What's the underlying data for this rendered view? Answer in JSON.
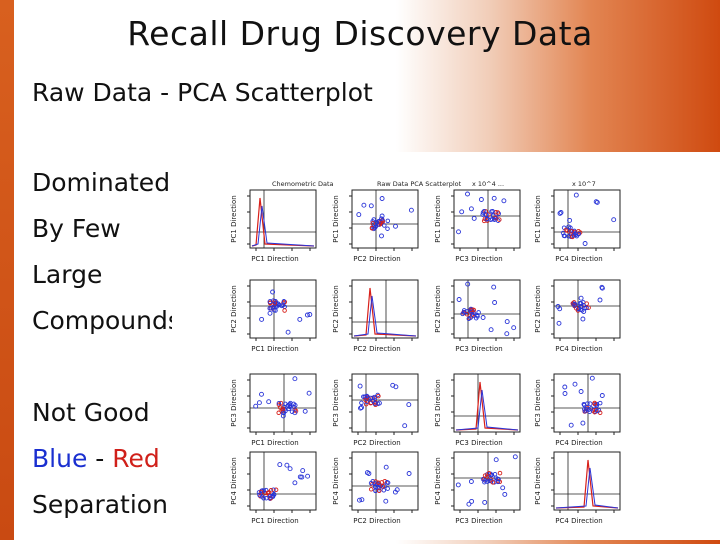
{
  "slide": {
    "title": "Recall Drug Discovery Data",
    "subtitle": "Raw Data - PCA Scatterplot",
    "left_text": {
      "line1": "Dominated",
      "line2": "By Few",
      "line3": "Large",
      "line4": "Compounds",
      "line5": "Not Good",
      "blue_word": "Blue",
      "dash": " - ",
      "red_word": "Red",
      "line7": "Separation"
    }
  },
  "figure": {
    "panel_titles": {
      "p00": "Chemometric Data",
      "p01": "Raw Data PCA Scatterplot",
      "p02": "x 10^4 ...",
      "p03": "x 10^7"
    },
    "x_axis_labels": [
      "PC1 Direction",
      "PC2 Direction",
      "PC3 Direction",
      "PC4 Direction"
    ],
    "y_axis_labels": [
      "PC1 Direction",
      "PC2 Direction",
      "PC3 Direction",
      "PC4 Direction"
    ],
    "colors": {
      "blue": "#2a35d8",
      "red": "#d8201a",
      "axis": "#222222"
    }
  }
}
